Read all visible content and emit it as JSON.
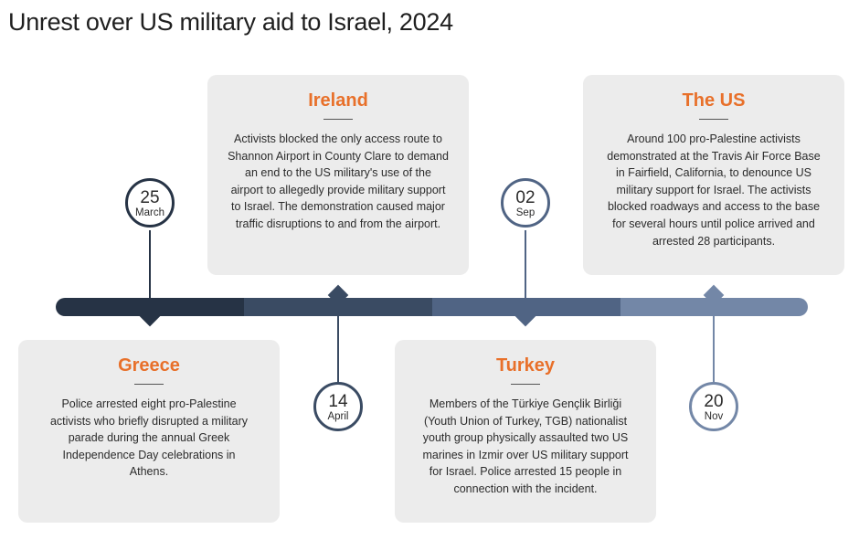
{
  "title": "Unrest over US military aid to Israel, 2024",
  "colors": {
    "accent": "#e8702a",
    "card_bg": "#ececec",
    "segment_1": "#263345",
    "segment_2": "#3a4b63",
    "segment_3": "#506484",
    "segment_4": "#7387a7"
  },
  "events": [
    {
      "day": "25",
      "month": "March",
      "country": "Greece",
      "text": "Police arrested eight pro-Palestine activists who briefly disrupted a military parade during the annual Greek Independence Day celebrations in Athens."
    },
    {
      "day": "14",
      "month": "April",
      "country": "Ireland",
      "text": "Activists blocked the only access route to Shannon Airport in County Clare to demand an end to the US military's use of the airport to allegedly provide military support to Israel. The demonstration caused major traffic disruptions to and from the airport."
    },
    {
      "day": "02",
      "month": "Sep",
      "country": "Turkey",
      "text": "Members of the Türkiye Gençlik Birliği (Youth Union of Turkey, TGB) nationalist youth group physically assaulted two US marines in Izmir over US military support for Israel. Police arrested 15 people in connection with the incident."
    },
    {
      "day": "20",
      "month": "Nov",
      "country": "The US",
      "text": "Around 100 pro-Palestine activists demonstrated at the Travis Air Force Base in Fairfield, California, to denounce US military support for Israel. The activists blocked roadways and access to the base for several hours until police arrived and arrested 28 participants."
    }
  ]
}
